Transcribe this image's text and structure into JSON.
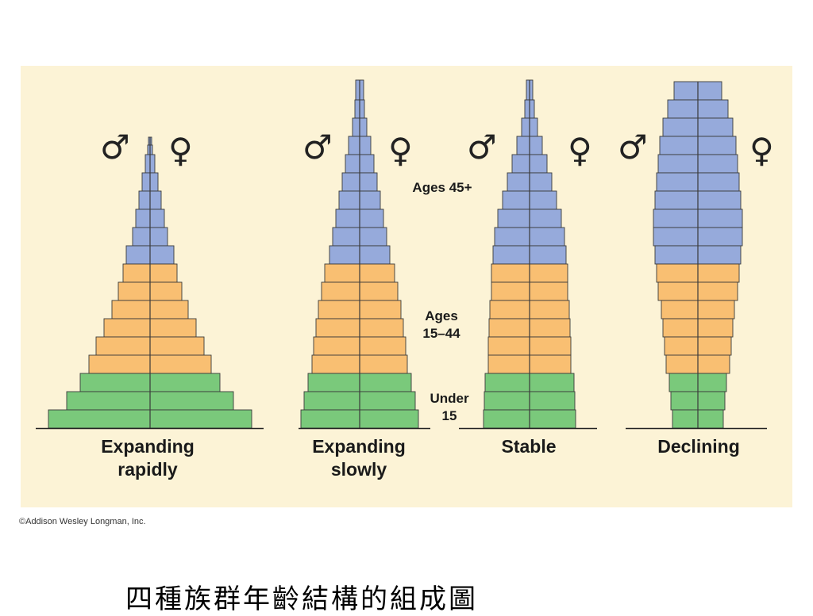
{
  "diagram": {
    "colors": {
      "background": "#fcf3d6",
      "age_45_plus": "#96aadb",
      "age_15_44": "#f9bf72",
      "under_15": "#7ac97b",
      "outline": "#3a3a3a"
    },
    "band_labels": {
      "ages_45_plus": "Ages 45+",
      "ages_15_44_line1": "Ages",
      "ages_15_44_line2": "15–44",
      "under_15_line1": "Under",
      "under_15_line2": "15"
    },
    "symbols": {
      "male": "♂",
      "female": "♀"
    },
    "pyramids": [
      {
        "label_line1": "Expanding",
        "label_line2": "rapidly"
      },
      {
        "label_line1": "Expanding",
        "label_line2": "slowly"
      },
      {
        "label_line1": "Stable",
        "label_line2": ""
      },
      {
        "label_line1": "Declining",
        "label_line2": ""
      }
    ]
  },
  "copyright": "©Addison Wesley Longman, Inc.",
  "caption": "四種族群年齡結構的組成圖"
}
